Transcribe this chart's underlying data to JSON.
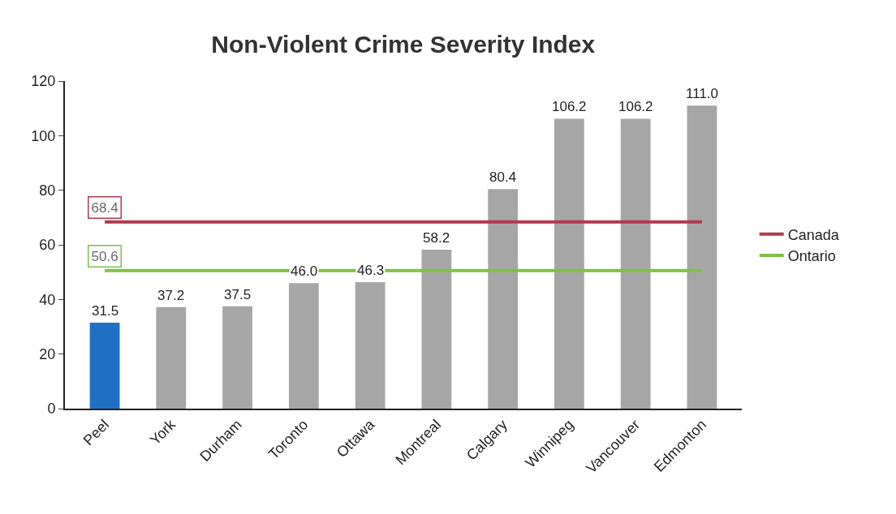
{
  "chart_data": {
    "type": "bar",
    "title": "Non-Violent Crime Severity Index",
    "categories": [
      "Peel",
      "York",
      "Durham",
      "Toronto",
      "Ottawa",
      "Montreal",
      "Calgary",
      "Winnipeg",
      "Vancouver",
      "Edmonton"
    ],
    "series": [
      {
        "colors": [
          "#1f6fc5",
          "#a6a6a6",
          "#a6a6a6",
          "#a6a6a6",
          "#a6a6a6",
          "#a6a6a6",
          "#a6a6a6",
          "#a6a6a6",
          "#a6a6a6",
          "#a6a6a6"
        ],
        "values": [
          31.5,
          37.2,
          37.5,
          46.0,
          46.3,
          58.2,
          80.4,
          106.2,
          106.2,
          111.0
        ],
        "value_labels": [
          "31.5",
          "37.2",
          "37.5",
          "46.0",
          "46.3",
          "58.2",
          "80.4",
          "106.2",
          "106.2",
          "111.0"
        ]
      },
      {
        "type": "line",
        "name": "Canada",
        "color": "#b03a4e",
        "values": [
          68.4,
          68.4,
          68.4,
          68.4,
          68.4,
          68.4,
          68.4,
          68.4,
          68.4,
          68.4
        ],
        "value_labels": [
          "68.4",
          null,
          null,
          null,
          null,
          null,
          null,
          null,
          null,
          null
        ]
      },
      {
        "type": "line",
        "name": "Ontario",
        "color": "#7cc242",
        "values": [
          50.6,
          50.6,
          50.6,
          50.6,
          50.6,
          50.6,
          50.6,
          50.6,
          50.6,
          50.6
        ],
        "value_labels": [
          "50.6",
          null,
          null,
          null,
          null,
          null,
          null,
          null,
          null,
          null
        ]
      }
    ],
    "ylim": [
      0,
      120
    ],
    "yticks": [
      0,
      20,
      40,
      60,
      80,
      100,
      120
    ],
    "grid": false,
    "legend": "right",
    "marker": "none",
    "line_style": "solid"
  }
}
